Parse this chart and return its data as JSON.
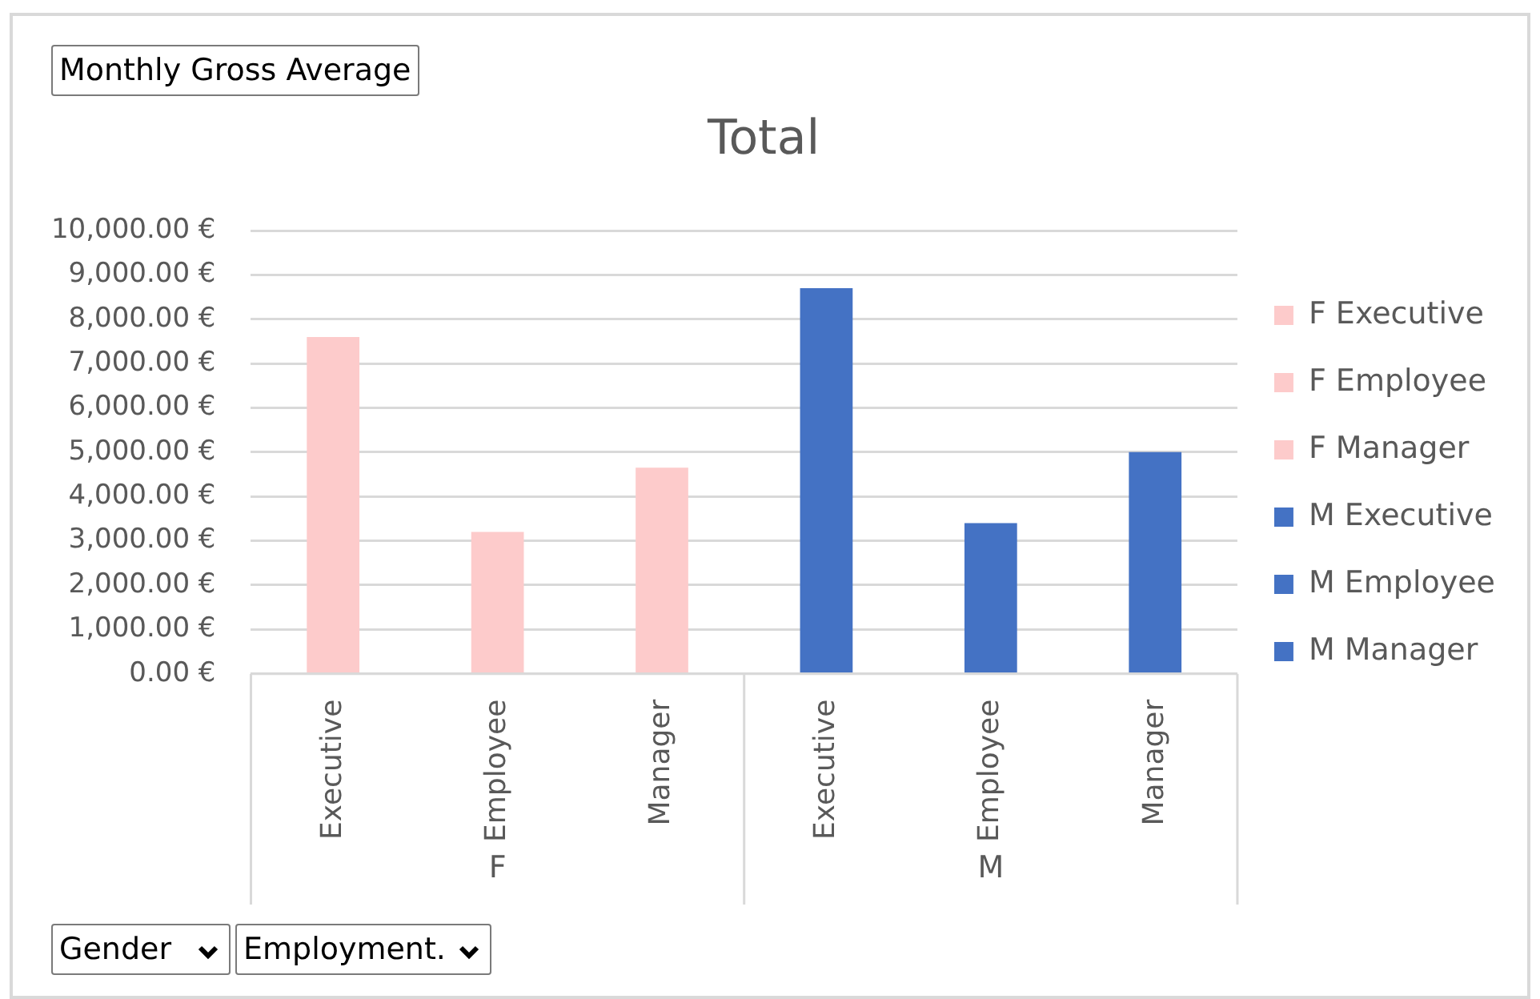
{
  "chart_data": {
    "type": "bar",
    "title": "Total",
    "categories": [
      "Executive",
      "Employee",
      "Manager",
      "Executive",
      "Employee",
      "Manager"
    ],
    "series": [
      {
        "name": "F Executive",
        "color": "#fdcbcb",
        "values": [
          7600,
          null,
          null,
          null,
          null,
          null
        ]
      },
      {
        "name": "F Employee",
        "color": "#fdcbcb",
        "values": [
          null,
          3200,
          null,
          null,
          null,
          null
        ]
      },
      {
        "name": "F Manager",
        "color": "#fdcbcb",
        "values": [
          null,
          null,
          4650,
          null,
          null,
          null
        ]
      },
      {
        "name": "M Executive",
        "color": "#4472c4",
        "values": [
          null,
          null,
          null,
          8700,
          null,
          null
        ]
      },
      {
        "name": "M Employee",
        "color": "#4472c4",
        "values": [
          null,
          null,
          null,
          null,
          3400,
          null
        ]
      },
      {
        "name": "M Manager",
        "color": "#4472c4",
        "values": [
          null,
          null,
          null,
          null,
          null,
          5000
        ]
      }
    ],
    "ylim": [
      0,
      10000
    ],
    "yticks": [
      {
        "value": 0,
        "label": "0.00 €"
      },
      {
        "value": 1000,
        "label": "1,000.00 €"
      },
      {
        "value": 2000,
        "label": "2,000.00 €"
      },
      {
        "value": 3000,
        "label": "3,000.00 €"
      },
      {
        "value": 4000,
        "label": "4,000.00 €"
      },
      {
        "value": 5000,
        "label": "5,000.00 €"
      },
      {
        "value": 6000,
        "label": "6,000.00 €"
      },
      {
        "value": 7000,
        "label": "7,000.00 €"
      },
      {
        "value": 8000,
        "label": "8,000.00 €"
      },
      {
        "value": 9000,
        "label": "9,000.00 €"
      },
      {
        "value": 10000,
        "label": "10,000.00 €"
      }
    ],
    "grid": "y",
    "legend": "right",
    "annotations": [
      "Monthly Gross Average",
      "Gender",
      "Employment.",
      "F",
      "M"
    ]
  }
}
